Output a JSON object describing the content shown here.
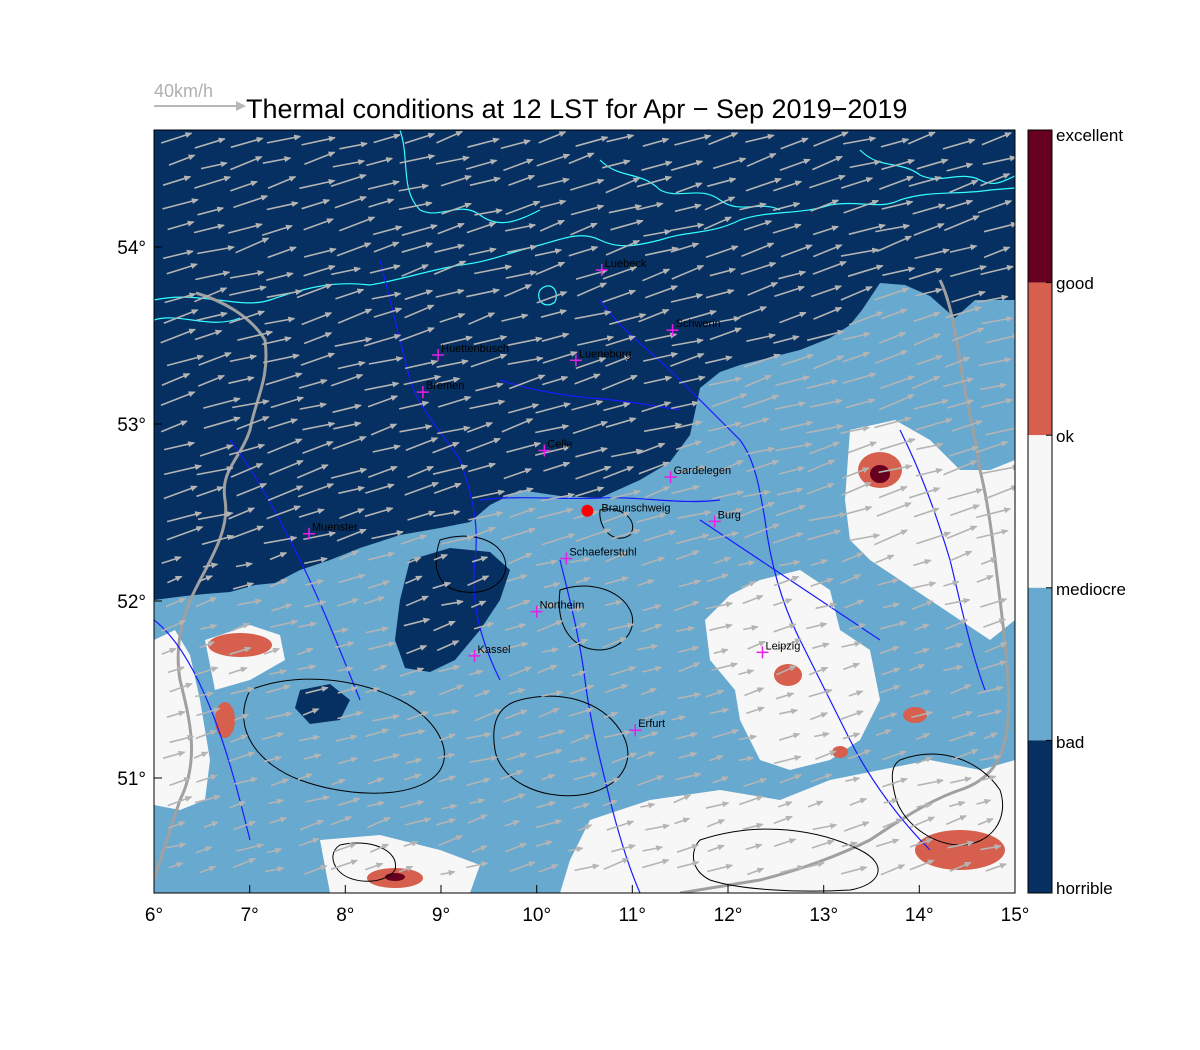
{
  "title": "Thermal conditions at 12 LST for Apr − Sep  2019−2019",
  "wind_reference": {
    "label": "40km/h",
    "color": "#b8b8b8"
  },
  "x_ticks": [
    "6°",
    "7°",
    "8°",
    "9°",
    "10°",
    "11°",
    "12°",
    "13°",
    "14°",
    "15°"
  ],
  "y_ticks": [
    "54°",
    "53°",
    "52°",
    "51°"
  ],
  "colorbar": {
    "labels": [
      "excellent",
      "good",
      "ok",
      "mediocre",
      "bad",
      "horrible"
    ],
    "colors": [
      "#67001f",
      "#d6604d",
      "#f7f7f7",
      "#67a9cf",
      "#053061"
    ]
  },
  "palette": {
    "coast": "#33ffff",
    "river": "#1a1aff",
    "border": "#a0a0a0",
    "terrain": "#000000",
    "wind": "#b4b4b4",
    "city_marker": "#e81ee8",
    "home_marker": "#ff0000"
  },
  "cities": [
    {
      "name": "Luebeck",
      "lon": 10.68,
      "lat": 53.87
    },
    {
      "name": "Schwerin",
      "lon": 11.42,
      "lat": 53.53
    },
    {
      "name": "Huettenbusch",
      "lon": 8.97,
      "lat": 53.39
    },
    {
      "name": "Lueneburg",
      "lon": 10.41,
      "lat": 53.36
    },
    {
      "name": "Bremen",
      "lon": 8.81,
      "lat": 53.18
    },
    {
      "name": "Celle",
      "lon": 10.08,
      "lat": 52.85
    },
    {
      "name": "Gardelegen",
      "lon": 11.4,
      "lat": 52.7
    },
    {
      "name": "Burg",
      "lon": 11.86,
      "lat": 52.45
    },
    {
      "name": "Muenster",
      "lon": 7.62,
      "lat": 52.38
    },
    {
      "name": "Schaeferstuhl",
      "lon": 10.31,
      "lat": 52.24
    },
    {
      "name": "Northeim",
      "lon": 10.0,
      "lat": 51.94
    },
    {
      "name": "Leipzig",
      "lon": 12.36,
      "lat": 51.71
    },
    {
      "name": "Kassel",
      "lon": 9.35,
      "lat": 51.69
    },
    {
      "name": "Erfurt",
      "lon": 11.03,
      "lat": 51.27
    }
  ],
  "home": {
    "name": "Braunschweig",
    "lon": 10.53,
    "lat": 52.51
  }
}
